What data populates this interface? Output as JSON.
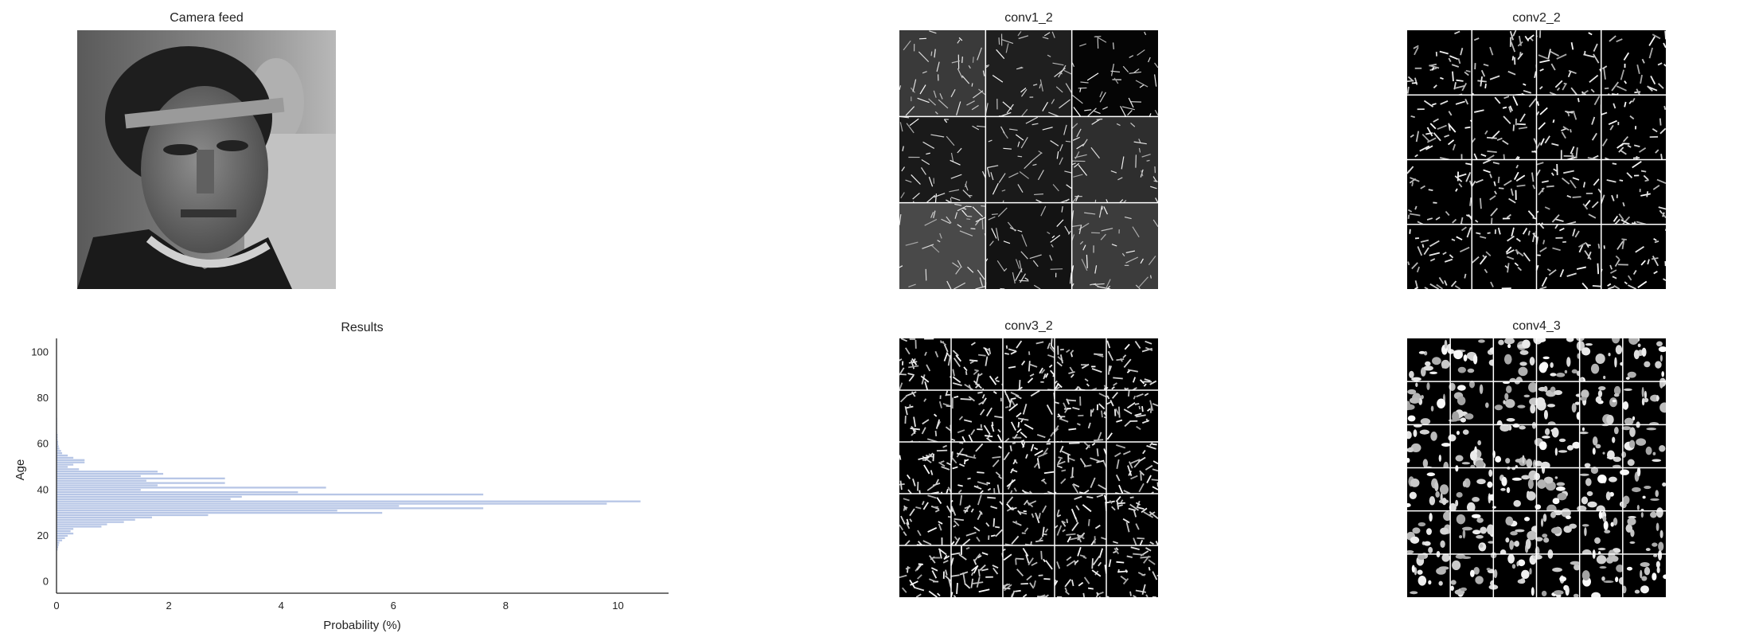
{
  "panels": {
    "camera": "Camera feed",
    "conv1": "conv1_2",
    "conv2": "conv2_2",
    "conv3": "conv3_2",
    "conv4": "conv4_3"
  },
  "colors": {
    "bar": "#b7c6e6",
    "axis": "#222222",
    "map_bg": "#000000",
    "map_fg": "#ffffff"
  },
  "grids": {
    "conv1": [
      3,
      3
    ],
    "conv2": [
      4,
      4
    ],
    "conv3": [
      5,
      5
    ],
    "conv4": [
      6,
      6
    ]
  },
  "chart_data": {
    "type": "bar",
    "orientation": "horizontal",
    "title": "Results",
    "xlabel": "Probability (%)",
    "ylabel": "Age",
    "xlim": [
      0,
      10.9
    ],
    "ylim": [
      -5,
      106
    ],
    "xticks": [
      0,
      2,
      4,
      6,
      8,
      10
    ],
    "yticks": [
      0,
      20,
      40,
      60,
      80,
      100
    ],
    "grid": false,
    "y": [
      14,
      15,
      16,
      17,
      18,
      19,
      20,
      21,
      22,
      23,
      24,
      25,
      26,
      27,
      28,
      29,
      30,
      31,
      32,
      33,
      34,
      35,
      36,
      37,
      38,
      39,
      40,
      41,
      42,
      43,
      44,
      45,
      46,
      47,
      48,
      49,
      50,
      51,
      52,
      53,
      54,
      55,
      56,
      57,
      58,
      59,
      60,
      61,
      62,
      63,
      64,
      65,
      66,
      67,
      68,
      69,
      70,
      71
    ],
    "values": [
      0.02,
      0.03,
      0.04,
      0.05,
      0.1,
      0.15,
      0.2,
      0.3,
      0.25,
      0.3,
      0.8,
      0.9,
      1.2,
      1.4,
      1.7,
      2.7,
      5.8,
      5.0,
      7.6,
      6.1,
      9.8,
      10.4,
      3.1,
      3.3,
      7.6,
      4.3,
      1.5,
      4.8,
      1.8,
      3.0,
      1.6,
      3.0,
      1.5,
      1.9,
      1.8,
      0.4,
      0.2,
      0.3,
      0.5,
      0.5,
      0.3,
      0.2,
      0.1,
      0.08,
      0.05,
      0.04,
      0.03,
      0.03,
      0.02,
      0.02,
      0.02,
      0.01,
      0.01,
      0.01,
      0.01,
      0.01,
      0.01,
      0.01
    ]
  }
}
